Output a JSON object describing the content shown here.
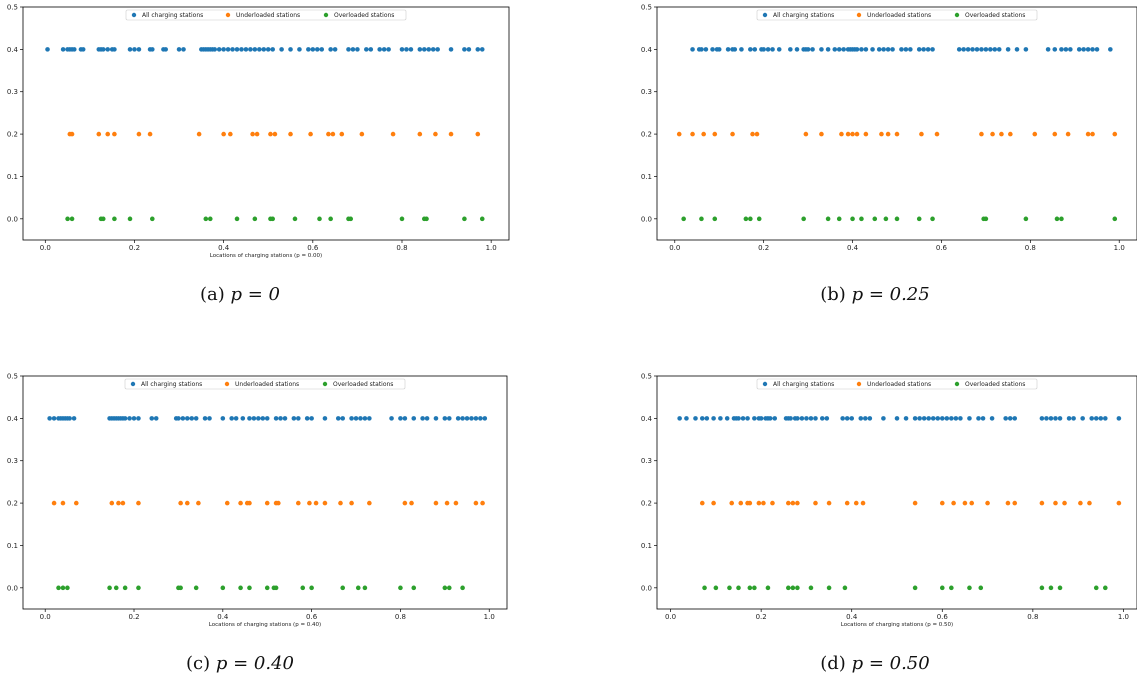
{
  "legend_labels": [
    "All charging stations",
    "Underloaded stations",
    "Overloaded stations"
  ],
  "series_colors": [
    "#1f77b4",
    "#ff7f0e",
    "#2ca02c"
  ],
  "chart_data": [
    {
      "type": "scatter",
      "caption_prefix": "(a)",
      "caption_math": "p = 0",
      "xlabel": "Locations of charging stations (p = 0.00)",
      "xlim": [
        -0.05,
        1.04
      ],
      "ylim": [
        -0.05,
        0.5
      ],
      "xticks": [
        "0.0",
        "0.2",
        "0.4",
        "0.6",
        "0.8",
        "1.0"
      ],
      "yticks": [
        "0.0",
        "0.1",
        "0.2",
        "0.3",
        "0.4",
        "0.5"
      ],
      "legend_position": "top-center",
      "series": [
        {
          "name": "All charging stations",
          "y": 0.4,
          "x": [
            0.005,
            0.04,
            0.05,
            0.055,
            0.06,
            0.065,
            0.08,
            0.085,
            0.12,
            0.125,
            0.13,
            0.14,
            0.15,
            0.155,
            0.19,
            0.2,
            0.21,
            0.235,
            0.24,
            0.265,
            0.27,
            0.3,
            0.31,
            0.35,
            0.355,
            0.36,
            0.365,
            0.37,
            0.375,
            0.38,
            0.39,
            0.4,
            0.41,
            0.42,
            0.43,
            0.44,
            0.45,
            0.46,
            0.47,
            0.48,
            0.49,
            0.5,
            0.51,
            0.53,
            0.55,
            0.57,
            0.59,
            0.6,
            0.61,
            0.62,
            0.64,
            0.65,
            0.68,
            0.69,
            0.7,
            0.72,
            0.73,
            0.75,
            0.76,
            0.77,
            0.8,
            0.81,
            0.82,
            0.84,
            0.85,
            0.86,
            0.87,
            0.88,
            0.91,
            0.94,
            0.95,
            0.97,
            0.98
          ]
        },
        {
          "name": "Underloaded stations",
          "y": 0.2,
          "x": [
            0.055,
            0.06,
            0.12,
            0.14,
            0.155,
            0.21,
            0.235,
            0.345,
            0.4,
            0.415,
            0.465,
            0.475,
            0.505,
            0.515,
            0.55,
            0.595,
            0.635,
            0.645,
            0.665,
            0.71,
            0.78,
            0.84,
            0.875,
            0.91,
            0.97
          ]
        },
        {
          "name": "Overloaded stations",
          "y": 0.0,
          "x": [
            0.05,
            0.06,
            0.125,
            0.13,
            0.155,
            0.19,
            0.24,
            0.36,
            0.37,
            0.43,
            0.47,
            0.505,
            0.51,
            0.56,
            0.615,
            0.64,
            0.68,
            0.685,
            0.8,
            0.85,
            0.855,
            0.94,
            0.98
          ]
        }
      ]
    },
    {
      "type": "scatter",
      "caption_prefix": "(b)",
      "caption_math": "p = 0.25",
      "xlabel": "",
      "xlim": [
        -0.04,
        1.04
      ],
      "ylim": [
        -0.05,
        0.5
      ],
      "xticks": [
        "0.0",
        "0.2",
        "0.4",
        "0.6",
        "0.8",
        "1.0"
      ],
      "yticks": [
        "0.0",
        "0.1",
        "0.2",
        "0.3",
        "0.4",
        "0.5"
      ],
      "legend_position": "top-center",
      "series": [
        {
          "name": "All charging stations",
          "y": 0.4,
          "x": [
            0.04,
            0.055,
            0.06,
            0.07,
            0.085,
            0.095,
            0.1,
            0.12,
            0.13,
            0.135,
            0.15,
            0.17,
            0.18,
            0.195,
            0.2,
            0.21,
            0.22,
            0.235,
            0.26,
            0.275,
            0.29,
            0.295,
            0.3,
            0.31,
            0.33,
            0.345,
            0.36,
            0.37,
            0.38,
            0.39,
            0.395,
            0.4,
            0.405,
            0.41,
            0.42,
            0.43,
            0.445,
            0.46,
            0.47,
            0.48,
            0.49,
            0.51,
            0.52,
            0.53,
            0.55,
            0.56,
            0.57,
            0.58,
            0.64,
            0.65,
            0.66,
            0.67,
            0.68,
            0.69,
            0.7,
            0.71,
            0.72,
            0.73,
            0.75,
            0.77,
            0.79,
            0.84,
            0.855,
            0.87,
            0.88,
            0.89,
            0.91,
            0.92,
            0.93,
            0.94,
            0.95,
            0.98
          ]
        },
        {
          "name": "Underloaded stations",
          "y": 0.2,
          "x": [
            0.01,
            0.04,
            0.065,
            0.09,
            0.13,
            0.175,
            0.185,
            0.295,
            0.33,
            0.375,
            0.39,
            0.4,
            0.41,
            0.43,
            0.465,
            0.48,
            0.5,
            0.555,
            0.59,
            0.69,
            0.715,
            0.735,
            0.755,
            0.81,
            0.855,
            0.885,
            0.93,
            0.94,
            0.99
          ]
        },
        {
          "name": "Overloaded stations",
          "y": 0.0,
          "x": [
            0.02,
            0.06,
            0.09,
            0.16,
            0.17,
            0.19,
            0.29,
            0.345,
            0.37,
            0.4,
            0.42,
            0.45,
            0.475,
            0.5,
            0.55,
            0.58,
            0.695,
            0.7,
            0.79,
            0.86,
            0.87,
            0.99
          ]
        }
      ]
    },
    {
      "type": "scatter",
      "caption_prefix": "(c)",
      "caption_math": "p = 0.40",
      "xlabel": "Locations of charging stations (p = 0.40)",
      "xlim": [
        -0.05,
        1.04
      ],
      "ylim": [
        -0.05,
        0.5
      ],
      "xticks": [
        "0.0",
        "0.2",
        "0.4",
        "0.6",
        "0.8",
        "1.0"
      ],
      "yticks": [
        "0.0",
        "0.1",
        "0.2",
        "0.3",
        "0.4",
        "0.5"
      ],
      "legend_position": "top-center",
      "series": [
        {
          "name": "All charging stations",
          "y": 0.4,
          "x": [
            0.01,
            0.02,
            0.03,
            0.035,
            0.04,
            0.045,
            0.05,
            0.055,
            0.065,
            0.145,
            0.15,
            0.155,
            0.16,
            0.165,
            0.17,
            0.175,
            0.18,
            0.19,
            0.2,
            0.21,
            0.24,
            0.25,
            0.295,
            0.3,
            0.31,
            0.32,
            0.33,
            0.34,
            0.36,
            0.37,
            0.4,
            0.42,
            0.43,
            0.445,
            0.46,
            0.47,
            0.48,
            0.49,
            0.5,
            0.52,
            0.53,
            0.54,
            0.56,
            0.57,
            0.59,
            0.6,
            0.63,
            0.66,
            0.67,
            0.69,
            0.7,
            0.71,
            0.72,
            0.73,
            0.78,
            0.8,
            0.81,
            0.83,
            0.85,
            0.86,
            0.88,
            0.9,
            0.91,
            0.93,
            0.94,
            0.95,
            0.96,
            0.97,
            0.98,
            0.99
          ]
        },
        {
          "name": "Underloaded stations",
          "y": 0.2,
          "x": [
            0.02,
            0.04,
            0.07,
            0.15,
            0.165,
            0.175,
            0.21,
            0.305,
            0.32,
            0.345,
            0.41,
            0.44,
            0.455,
            0.46,
            0.5,
            0.52,
            0.525,
            0.57,
            0.595,
            0.61,
            0.63,
            0.665,
            0.69,
            0.73,
            0.81,
            0.825,
            0.88,
            0.905,
            0.925,
            0.97,
            0.985
          ]
        },
        {
          "name": "Overloaded stations",
          "y": 0.0,
          "x": [
            0.03,
            0.04,
            0.05,
            0.145,
            0.16,
            0.18,
            0.21,
            0.3,
            0.305,
            0.34,
            0.4,
            0.44,
            0.46,
            0.5,
            0.515,
            0.52,
            0.58,
            0.6,
            0.67,
            0.705,
            0.72,
            0.8,
            0.83,
            0.9,
            0.91,
            0.94
          ]
        }
      ]
    },
    {
      "type": "scatter",
      "caption_prefix": "(d)",
      "caption_math": "p = 0.50",
      "xlabel": "Locations of charging stations (p = 0.50)",
      "xlim": [
        -0.03,
        1.03
      ],
      "ylim": [
        -0.05,
        0.5
      ],
      "xticks": [
        "0.0",
        "0.2",
        "0.4",
        "0.6",
        "0.8",
        "1.0"
      ],
      "yticks": [
        "0.0",
        "0.1",
        "0.2",
        "0.3",
        "0.4",
        "0.5"
      ],
      "legend_position": "top-center",
      "series": [
        {
          "name": "All charging stations",
          "y": 0.4,
          "x": [
            0.02,
            0.035,
            0.055,
            0.07,
            0.08,
            0.095,
            0.11,
            0.125,
            0.14,
            0.145,
            0.15,
            0.16,
            0.17,
            0.185,
            0.195,
            0.2,
            0.21,
            0.215,
            0.22,
            0.23,
            0.255,
            0.26,
            0.265,
            0.275,
            0.28,
            0.29,
            0.3,
            0.31,
            0.32,
            0.335,
            0.345,
            0.38,
            0.39,
            0.4,
            0.42,
            0.43,
            0.44,
            0.47,
            0.5,
            0.52,
            0.54,
            0.55,
            0.56,
            0.57,
            0.58,
            0.59,
            0.6,
            0.61,
            0.62,
            0.63,
            0.64,
            0.66,
            0.68,
            0.69,
            0.71,
            0.74,
            0.75,
            0.76,
            0.82,
            0.83,
            0.84,
            0.85,
            0.86,
            0.88,
            0.89,
            0.91,
            0.93,
            0.94,
            0.95,
            0.96,
            0.99
          ]
        },
        {
          "name": "Underloaded stations",
          "y": 0.2,
          "x": [
            0.07,
            0.095,
            0.135,
            0.155,
            0.17,
            0.175,
            0.195,
            0.205,
            0.225,
            0.26,
            0.27,
            0.28,
            0.32,
            0.35,
            0.39,
            0.41,
            0.425,
            0.54,
            0.6,
            0.625,
            0.65,
            0.665,
            0.7,
            0.745,
            0.76,
            0.82,
            0.85,
            0.87,
            0.905,
            0.925,
            0.99
          ]
        },
        {
          "name": "Overloaded stations",
          "y": 0.0,
          "x": [
            0.075,
            0.1,
            0.13,
            0.15,
            0.175,
            0.185,
            0.215,
            0.26,
            0.27,
            0.28,
            0.31,
            0.35,
            0.385,
            0.54,
            0.6,
            0.62,
            0.66,
            0.685,
            0.82,
            0.84,
            0.86,
            0.94,
            0.96
          ]
        }
      ]
    }
  ]
}
